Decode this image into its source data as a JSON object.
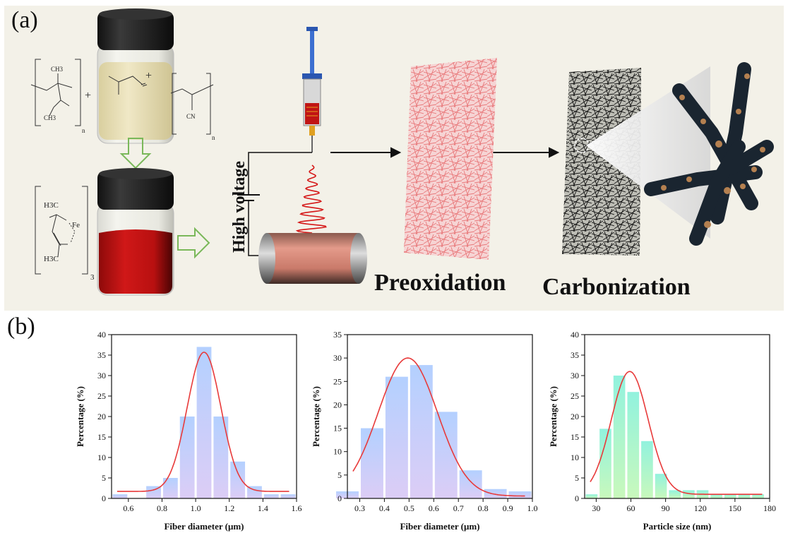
{
  "panel_a": {
    "label": "(a)",
    "voltage_label": "High voltage",
    "stage_labels": [
      "Preoxidation",
      "Carbonization"
    ],
    "chem": {
      "pmma_top": "CH3",
      "pmma_bot": "CH3",
      "plus": "+",
      "n": "n",
      "cn": "CN",
      "fe_h3c_top": "H3C",
      "fe": "Fe",
      "fe_h3c_bot": "H3C",
      "sub3": "3"
    }
  },
  "panel_b": {
    "label": "(b)"
  },
  "chart_data": [
    {
      "type": "bar",
      "name": "fiber-hist-1",
      "xlabel": "Fiber diameter (μm)",
      "ylabel": "Percentage (%)",
      "xlim": [
        0.5,
        1.6
      ],
      "ylim": [
        0,
        40
      ],
      "xticks": [
        "0.6",
        "0.8",
        "1.0",
        "1.2",
        "1.4",
        "1.6"
      ],
      "yticks": [
        "0",
        "5",
        "10",
        "15",
        "20",
        "25",
        "30",
        "35",
        "40"
      ],
      "bin_width": 0.1,
      "bins": [
        0.55,
        0.75,
        0.85,
        0.95,
        1.05,
        1.15,
        1.25,
        1.35,
        1.45,
        1.55
      ],
      "values": [
        1,
        3,
        5,
        20,
        37,
        20,
        9,
        3,
        1,
        1
      ],
      "fit": {
        "center": 1.05,
        "width": 0.1,
        "amplitude": 34,
        "offset": 1.7
      }
    },
    {
      "type": "bar",
      "name": "fiber-hist-2",
      "xlabel": "Fiber diameter (μm)",
      "ylabel": "Percentage (%)",
      "xlim": [
        0.25,
        1.0
      ],
      "ylim": [
        0,
        35
      ],
      "xticks": [
        "0.3",
        "0.4",
        "0.5",
        "0.6",
        "0.7",
        "0.8",
        "0.9",
        "1.0"
      ],
      "yticks": [
        "0",
        "5",
        "10",
        "15",
        "20",
        "25",
        "30",
        "35"
      ],
      "bin_width": 0.1,
      "bins": [
        0.25,
        0.35,
        0.45,
        0.55,
        0.65,
        0.75,
        0.85,
        0.95
      ],
      "values": [
        1.5,
        15,
        26,
        28.5,
        18.5,
        6,
        2,
        1.5
      ],
      "fit": {
        "center": 0.495,
        "width": 0.12,
        "amplitude": 29.5,
        "offset": 0.5
      }
    },
    {
      "type": "bar",
      "name": "particle-hist",
      "xlabel": "Particle size (nm)",
      "ylabel": "Percentage (%)",
      "xlim": [
        20,
        180
      ],
      "ylim": [
        0,
        40
      ],
      "xticks": [
        "30",
        "60",
        "90",
        "120",
        "150",
        "180"
      ],
      "yticks": [
        "0",
        "5",
        "10",
        "15",
        "20",
        "25",
        "30",
        "35",
        "40"
      ],
      "bin_width": 12,
      "bins": [
        26,
        38,
        50,
        62,
        74,
        86,
        98,
        110,
        122,
        134,
        146,
        158,
        170
      ],
      "values": [
        1,
        17,
        30,
        26,
        14,
        6,
        2,
        2,
        2,
        1,
        1,
        1,
        1
      ],
      "fit": {
        "center": 59,
        "width": 16,
        "amplitude": 30,
        "offset": 1
      }
    }
  ]
}
